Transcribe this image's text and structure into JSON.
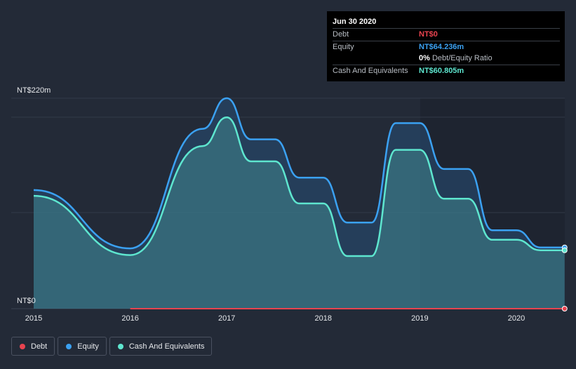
{
  "tooltip": {
    "date": "Jun 30 2020",
    "rows": [
      {
        "label": "Debt",
        "value": "NT$0",
        "color": "#e8434f"
      },
      {
        "label": "Equity",
        "value": "NT$64.236m",
        "color": "#3ba1f2"
      },
      {
        "label": "",
        "value": "0%",
        "suffix": "Debt/Equity Ratio"
      },
      {
        "label": "Cash And Equivalents",
        "value": "NT$60.805m",
        "color": "#5ee6cf"
      }
    ]
  },
  "legend": [
    {
      "label": "Debt",
      "color": "#e8434f"
    },
    {
      "label": "Equity",
      "color": "#3ba1f2"
    },
    {
      "label": "Cash And Equivalents",
      "color": "#5ee6cf"
    }
  ],
  "chart_data": {
    "type": "area",
    "x_ticks": [
      "2015",
      "2016",
      "2017",
      "2018",
      "2019",
      "2020"
    ],
    "y_labels": {
      "top": "NT$220m",
      "bottom": "NT$0"
    },
    "ylim": [
      0,
      220
    ],
    "xlim": [
      2015,
      2020.5
    ],
    "series": [
      {
        "name": "Debt",
        "color": "#e8434f",
        "x": [
          2016.0,
          2020.5
        ],
        "y": [
          0,
          0
        ]
      },
      {
        "name": "Equity",
        "color": "#3ba1f2",
        "x": [
          2015.0,
          2016.0,
          2016.75,
          2017.0,
          2017.25,
          2017.5,
          2017.75,
          2018.0,
          2018.25,
          2018.5,
          2018.75,
          2019.0,
          2019.25,
          2019.5,
          2019.75,
          2020.0,
          2020.25,
          2020.5
        ],
        "y": [
          124,
          63,
          188,
          220,
          177,
          177,
          137,
          137,
          90,
          90,
          194,
          194,
          146,
          146,
          82,
          82,
          64,
          64
        ]
      },
      {
        "name": "Cash And Equivalents",
        "color": "#5ee6cf",
        "x": [
          2015.0,
          2016.0,
          2016.75,
          2017.0,
          2017.25,
          2017.5,
          2017.75,
          2018.0,
          2018.25,
          2018.5,
          2018.75,
          2019.0,
          2019.25,
          2019.5,
          2019.75,
          2020.0,
          2020.25,
          2020.5
        ],
        "y": [
          118,
          56,
          170,
          200,
          154,
          154,
          110,
          110,
          55,
          55,
          166,
          166,
          115,
          115,
          72,
          72,
          61,
          61
        ]
      }
    ]
  }
}
